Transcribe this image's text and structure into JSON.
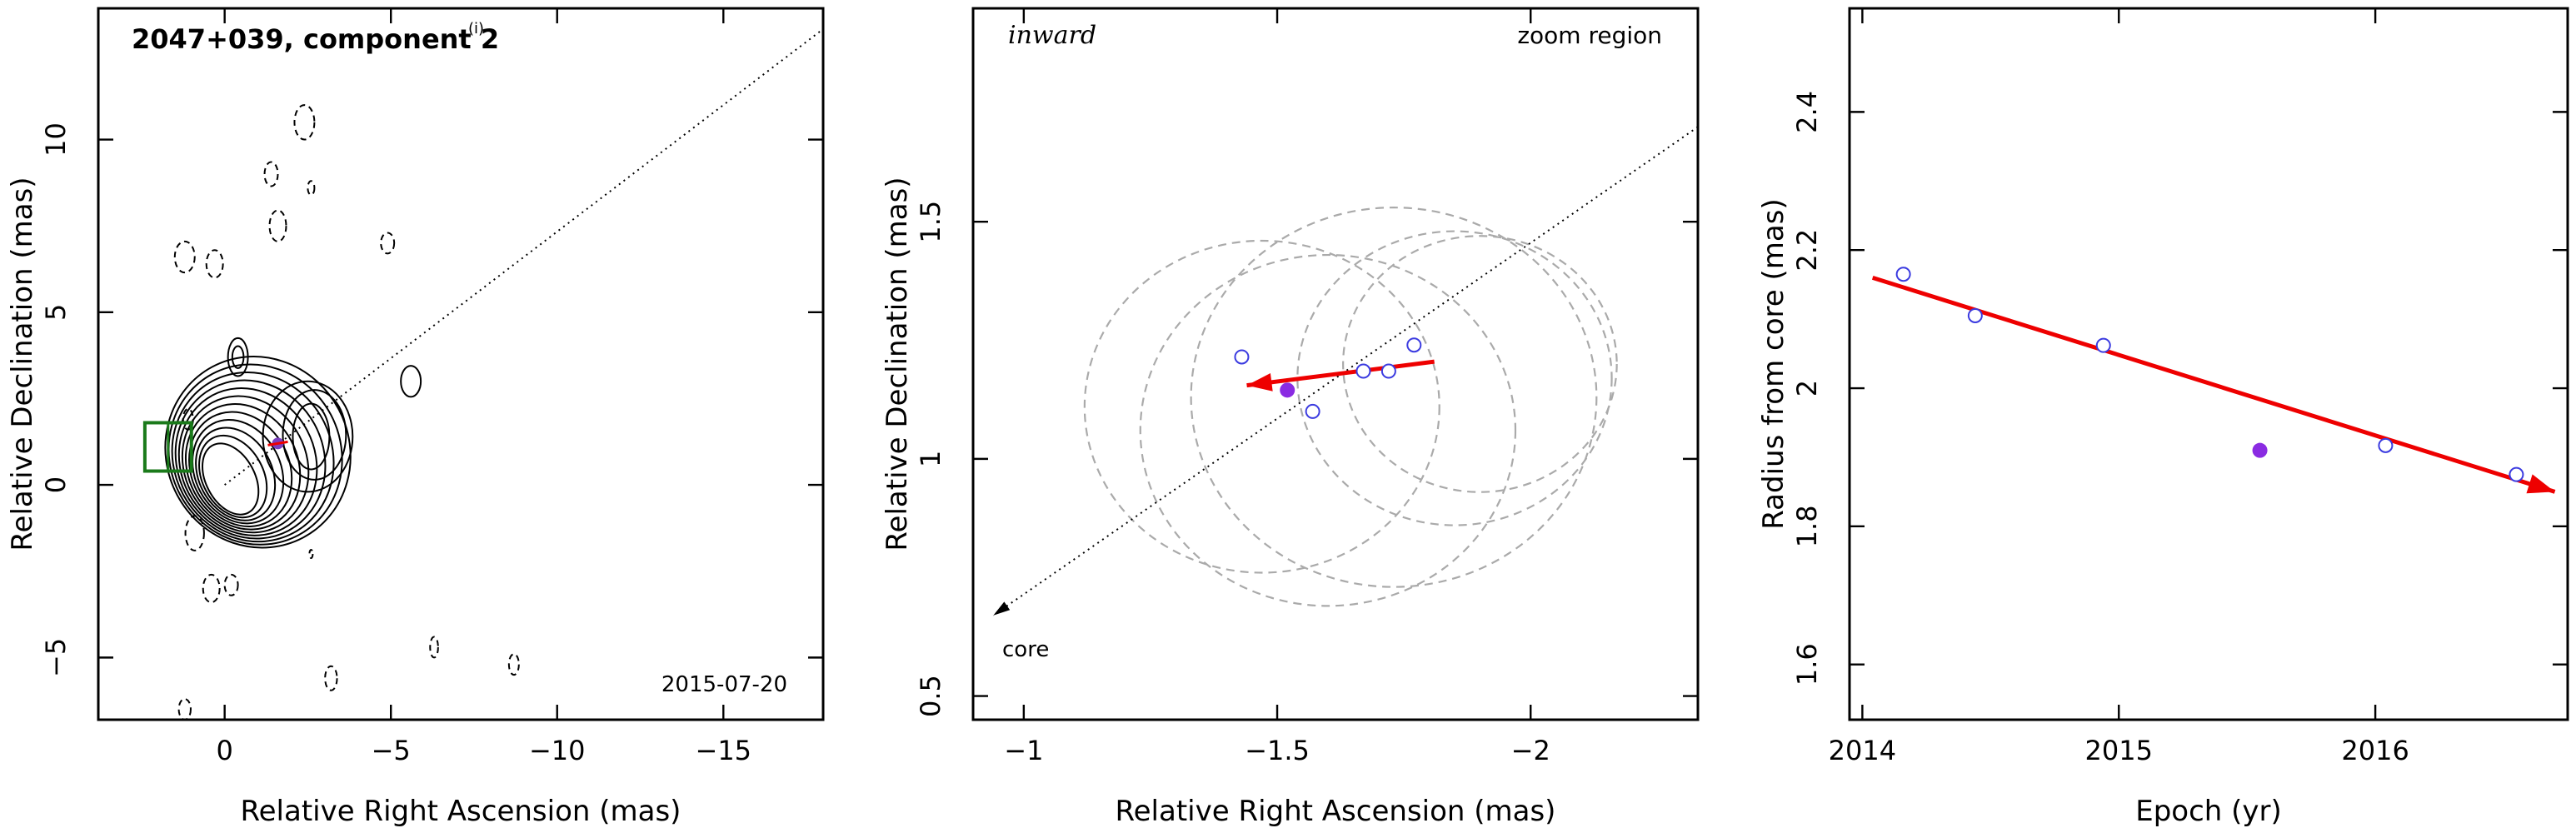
{
  "chart_data": [
    {
      "type": "contour_map",
      "title": "2047+039, component 2",
      "title_superscript": "(i)",
      "epoch_label": "2015-07-20",
      "xlabel": "Relative Right Ascension (mas)",
      "ylabel": "Relative Declination (mas)",
      "xlim": [
        3.8,
        -18
      ],
      "ylim": [
        -6.8,
        13.8
      ],
      "xticks": [
        0,
        -5,
        -10,
        -15
      ],
      "yticks": [
        -5,
        0,
        5,
        10
      ],
      "zoom_box": {
        "x": [
          1,
          2.4
        ],
        "y": [
          0.4,
          1.8
        ]
      },
      "projection_line": {
        "from": [
          0,
          0
        ],
        "to": [
          -18,
          13.2
        ]
      },
      "component_position": [
        -1.6,
        1.2
      ],
      "contour_color": "#000000",
      "box_color": "#1a7a1a"
    },
    {
      "type": "scatter",
      "title_left": "inward",
      "title_right": "zoom region",
      "xlabel": "Relative Right Ascension (mas)",
      "ylabel": "Relative Declination (mas)",
      "xlim": [
        -0.9,
        -2.33
      ],
      "ylim": [
        0.45,
        1.95
      ],
      "xticks": [
        -1,
        -1.5,
        -2
      ],
      "yticks": [
        0.5,
        1,
        1.5
      ],
      "annotation": "core",
      "points_open": [
        {
          "x": -1.43,
          "y": 1.215
        },
        {
          "x": -1.57,
          "y": 1.1
        },
        {
          "x": -1.67,
          "y": 1.185
        },
        {
          "x": -1.72,
          "y": 1.185
        },
        {
          "x": -1.77,
          "y": 1.24
        }
      ],
      "point_filled": {
        "x": -1.52,
        "y": 1.145
      },
      "fit_arrow": {
        "from": [
          -1.81,
          1.205
        ],
        "to": [
          -1.44,
          1.155
        ]
      },
      "circles": [
        {
          "cx": -1.47,
          "cy": 1.11,
          "r": 0.35
        },
        {
          "cx": -1.6,
          "cy": 1.06,
          "r": 0.37
        },
        {
          "cx": -1.73,
          "cy": 1.13,
          "r": 0.4
        },
        {
          "cx": -1.85,
          "cy": 1.17,
          "r": 0.31
        },
        {
          "cx": -1.9,
          "cy": 1.2,
          "r": 0.27
        }
      ],
      "projection_line": {
        "from": [
          -0.94,
          0.67
        ],
        "to": [
          -2.33,
          1.7
        ]
      },
      "open_color": "#3b3be0",
      "filled_color": "#8a2be2",
      "arrow_color": "#ee0000",
      "circle_color": "#aaaaaa"
    },
    {
      "type": "scatter",
      "xlabel": "Epoch (yr)",
      "ylabel": "Radius from core (mas)",
      "xlim": [
        2013.95,
        2016.75
      ],
      "ylim": [
        1.52,
        2.55
      ],
      "xticks": [
        2014,
        2015,
        2016
      ],
      "yticks": [
        1.6,
        1.8,
        2,
        2.2,
        2.4
      ],
      "points_open": [
        {
          "x": 2014.16,
          "y": 2.165
        },
        {
          "x": 2014.44,
          "y": 2.105
        },
        {
          "x": 2014.94,
          "y": 2.062
        },
        {
          "x": 2016.04,
          "y": 1.917
        },
        {
          "x": 2016.55,
          "y": 1.875
        }
      ],
      "point_filled": {
        "x": 2015.55,
        "y": 1.91
      },
      "fit_arrow": {
        "from": [
          2014.04,
          2.16
        ],
        "to": [
          2016.7,
          1.85
        ]
      },
      "open_color": "#3b3be0",
      "filled_color": "#8a2be2",
      "arrow_color": "#ee0000"
    }
  ]
}
